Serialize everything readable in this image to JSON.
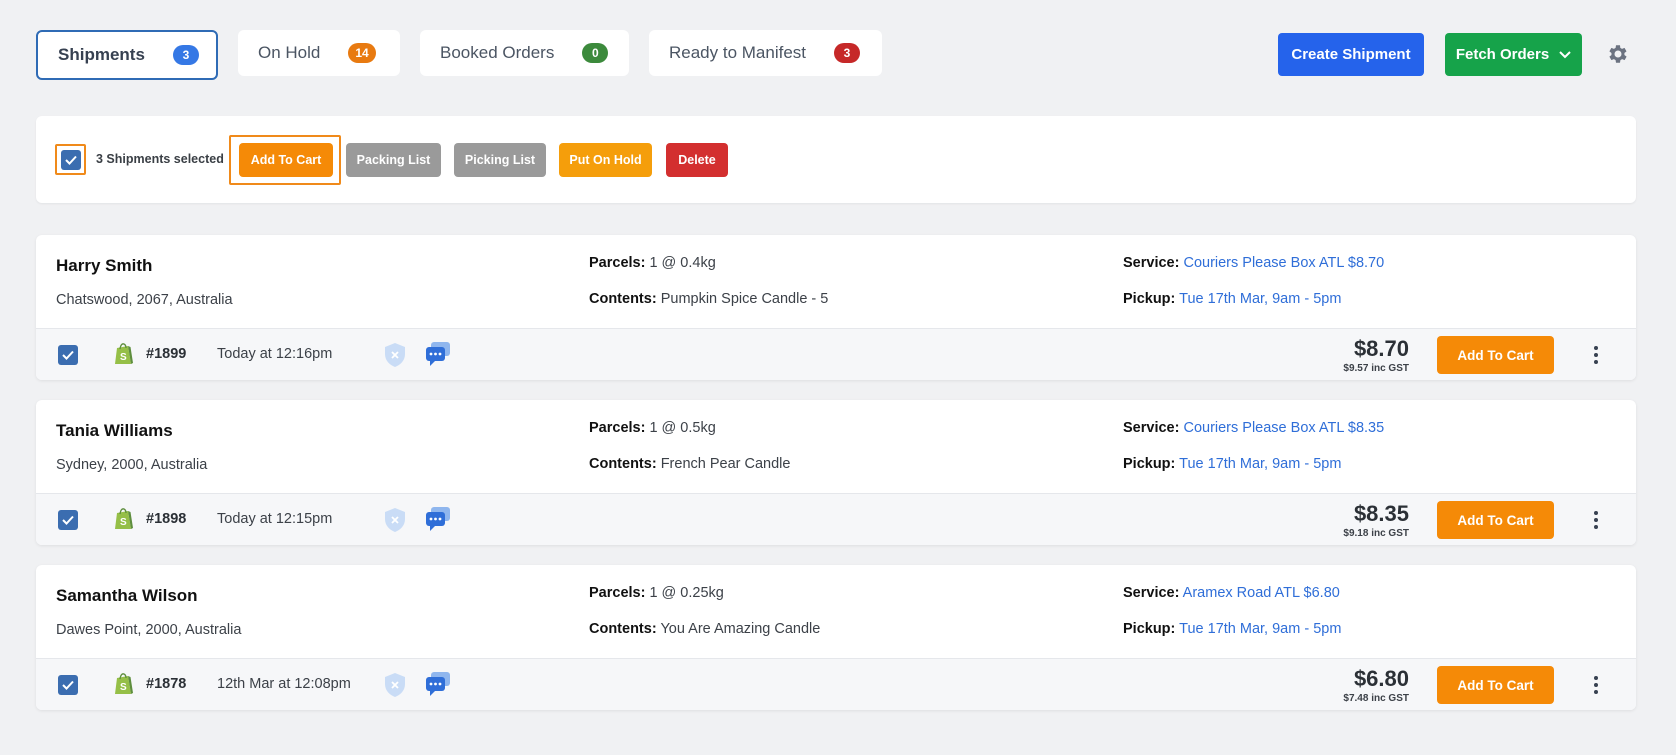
{
  "tabs": [
    {
      "label": "Shipments",
      "count": "3",
      "active": true
    },
    {
      "label": "On Hold",
      "count": "14"
    },
    {
      "label": "Booked Orders",
      "count": "0"
    },
    {
      "label": "Ready to Manifest",
      "count": "3"
    }
  ],
  "header": {
    "create_label": "Create Shipment",
    "fetch_label": "Fetch Orders",
    "settings_icon": "gear-icon"
  },
  "actionbar": {
    "selected_text": "3 Shipments selected",
    "add_to_cart": "Add To Cart",
    "packing_list": "Packing List",
    "picking_list": "Picking List",
    "put_on_hold": "Put On Hold",
    "delete": "Delete"
  },
  "labels": {
    "parcels": "Parcels:",
    "contents": "Contents:",
    "service": "Service:",
    "pickup": "Pickup:",
    "add_to_cart": "Add To Cart"
  },
  "shipments": [
    {
      "name": "Harry Smith",
      "address": "Chatswood, 2067, Australia",
      "parcels": "1 @ 0.4kg",
      "contents": "Pumpkin Spice Candle - 5",
      "service": "Couriers Please Box ATL $8.70",
      "pickup": "Tue 17th Mar, 9am - 5pm",
      "order": "#1899",
      "time": "Today at 12:16pm",
      "price": "$8.70",
      "gst": "$9.57 inc GST"
    },
    {
      "name": "Tania Williams",
      "address": "Sydney, 2000, Australia",
      "parcels": "1 @ 0.5kg",
      "contents": "French Pear Candle",
      "service": "Couriers Please Box ATL $8.35",
      "pickup": "Tue 17th Mar, 9am - 5pm",
      "order": "#1898",
      "time": "Today at 12:15pm",
      "price": "$8.35",
      "gst": "$9.18 inc GST"
    },
    {
      "name": "Samantha Wilson",
      "address": "Dawes Point, 2000, Australia",
      "parcels": "1 @ 0.25kg",
      "contents": "You Are Amazing Candle",
      "service": "Aramex Road ATL $6.80",
      "pickup": "Tue 17th Mar, 9am - 5pm",
      "order": "#1878",
      "time": "12th Mar at 12:08pm",
      "price": "$6.80",
      "gst": "$7.48 inc GST"
    }
  ],
  "colors": {
    "accent_blue": "#2563eb",
    "accent_green": "#16a34a",
    "cart_orange": "#f58a07",
    "highlight_orange": "#f08a1a",
    "link_blue": "#2f6ed8"
  }
}
